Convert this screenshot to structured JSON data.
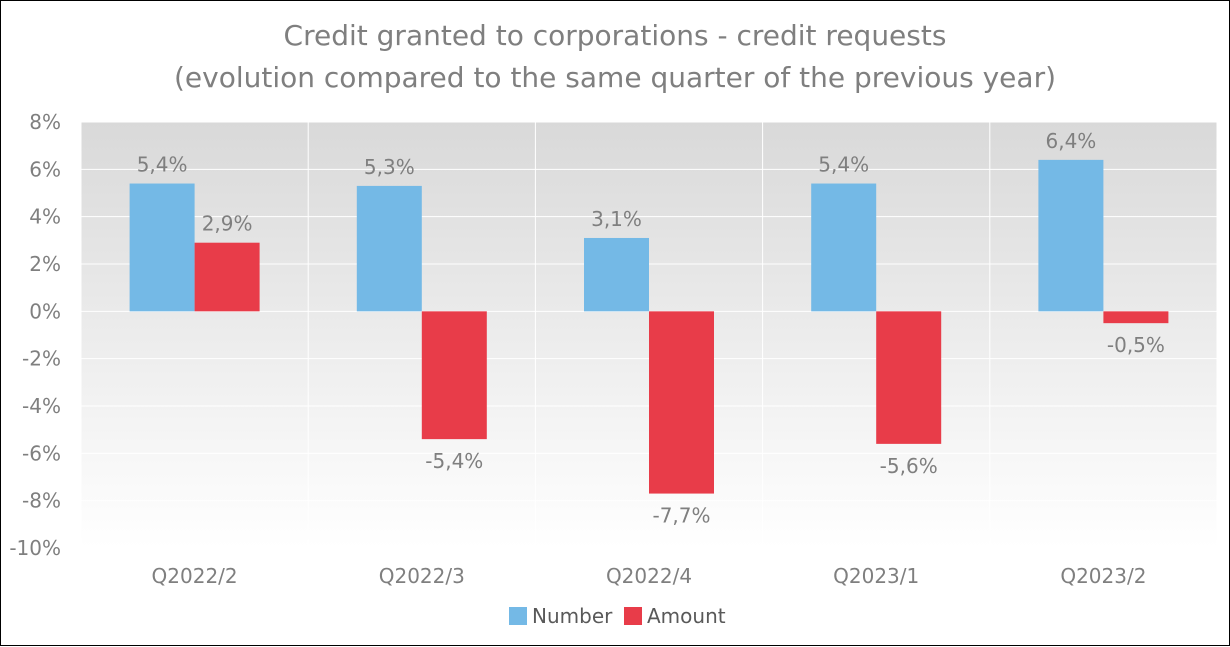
{
  "chart_data": {
    "type": "bar",
    "title": "Credit granted to corporations - credit requests",
    "subtitle": "(evolution compared to the same quarter of the previous year)",
    "categories": [
      "Q2022/2",
      "Q2022/3",
      "Q2022/4",
      "Q2023/1",
      "Q2023/2"
    ],
    "series": [
      {
        "name": "Number",
        "values": [
          5.4,
          5.3,
          3.1,
          5.4,
          6.4
        ],
        "labels": [
          "5,4%",
          "5,3%",
          "3,1%",
          "5,4%",
          "6,4%"
        ],
        "color": "#74b9e6"
      },
      {
        "name": "Amount",
        "values": [
          2.9,
          -5.4,
          -7.7,
          -5.6,
          -0.5
        ],
        "labels": [
          "2,9%",
          "-5,4%",
          "-7,7%",
          "-5,6%",
          "-0,5%"
        ],
        "color": "#e83c49"
      }
    ],
    "ylim": [
      -10,
      8
    ],
    "yticks": [
      8,
      6,
      4,
      2,
      0,
      -2,
      -4,
      -6,
      -8,
      -10
    ],
    "ytick_labels": [
      "8%",
      "6%",
      "4%",
      "2%",
      "0%",
      "-2%",
      "-4%",
      "-6%",
      "-8%",
      "-10%"
    ],
    "grid": true,
    "legend_position": "bottom"
  }
}
